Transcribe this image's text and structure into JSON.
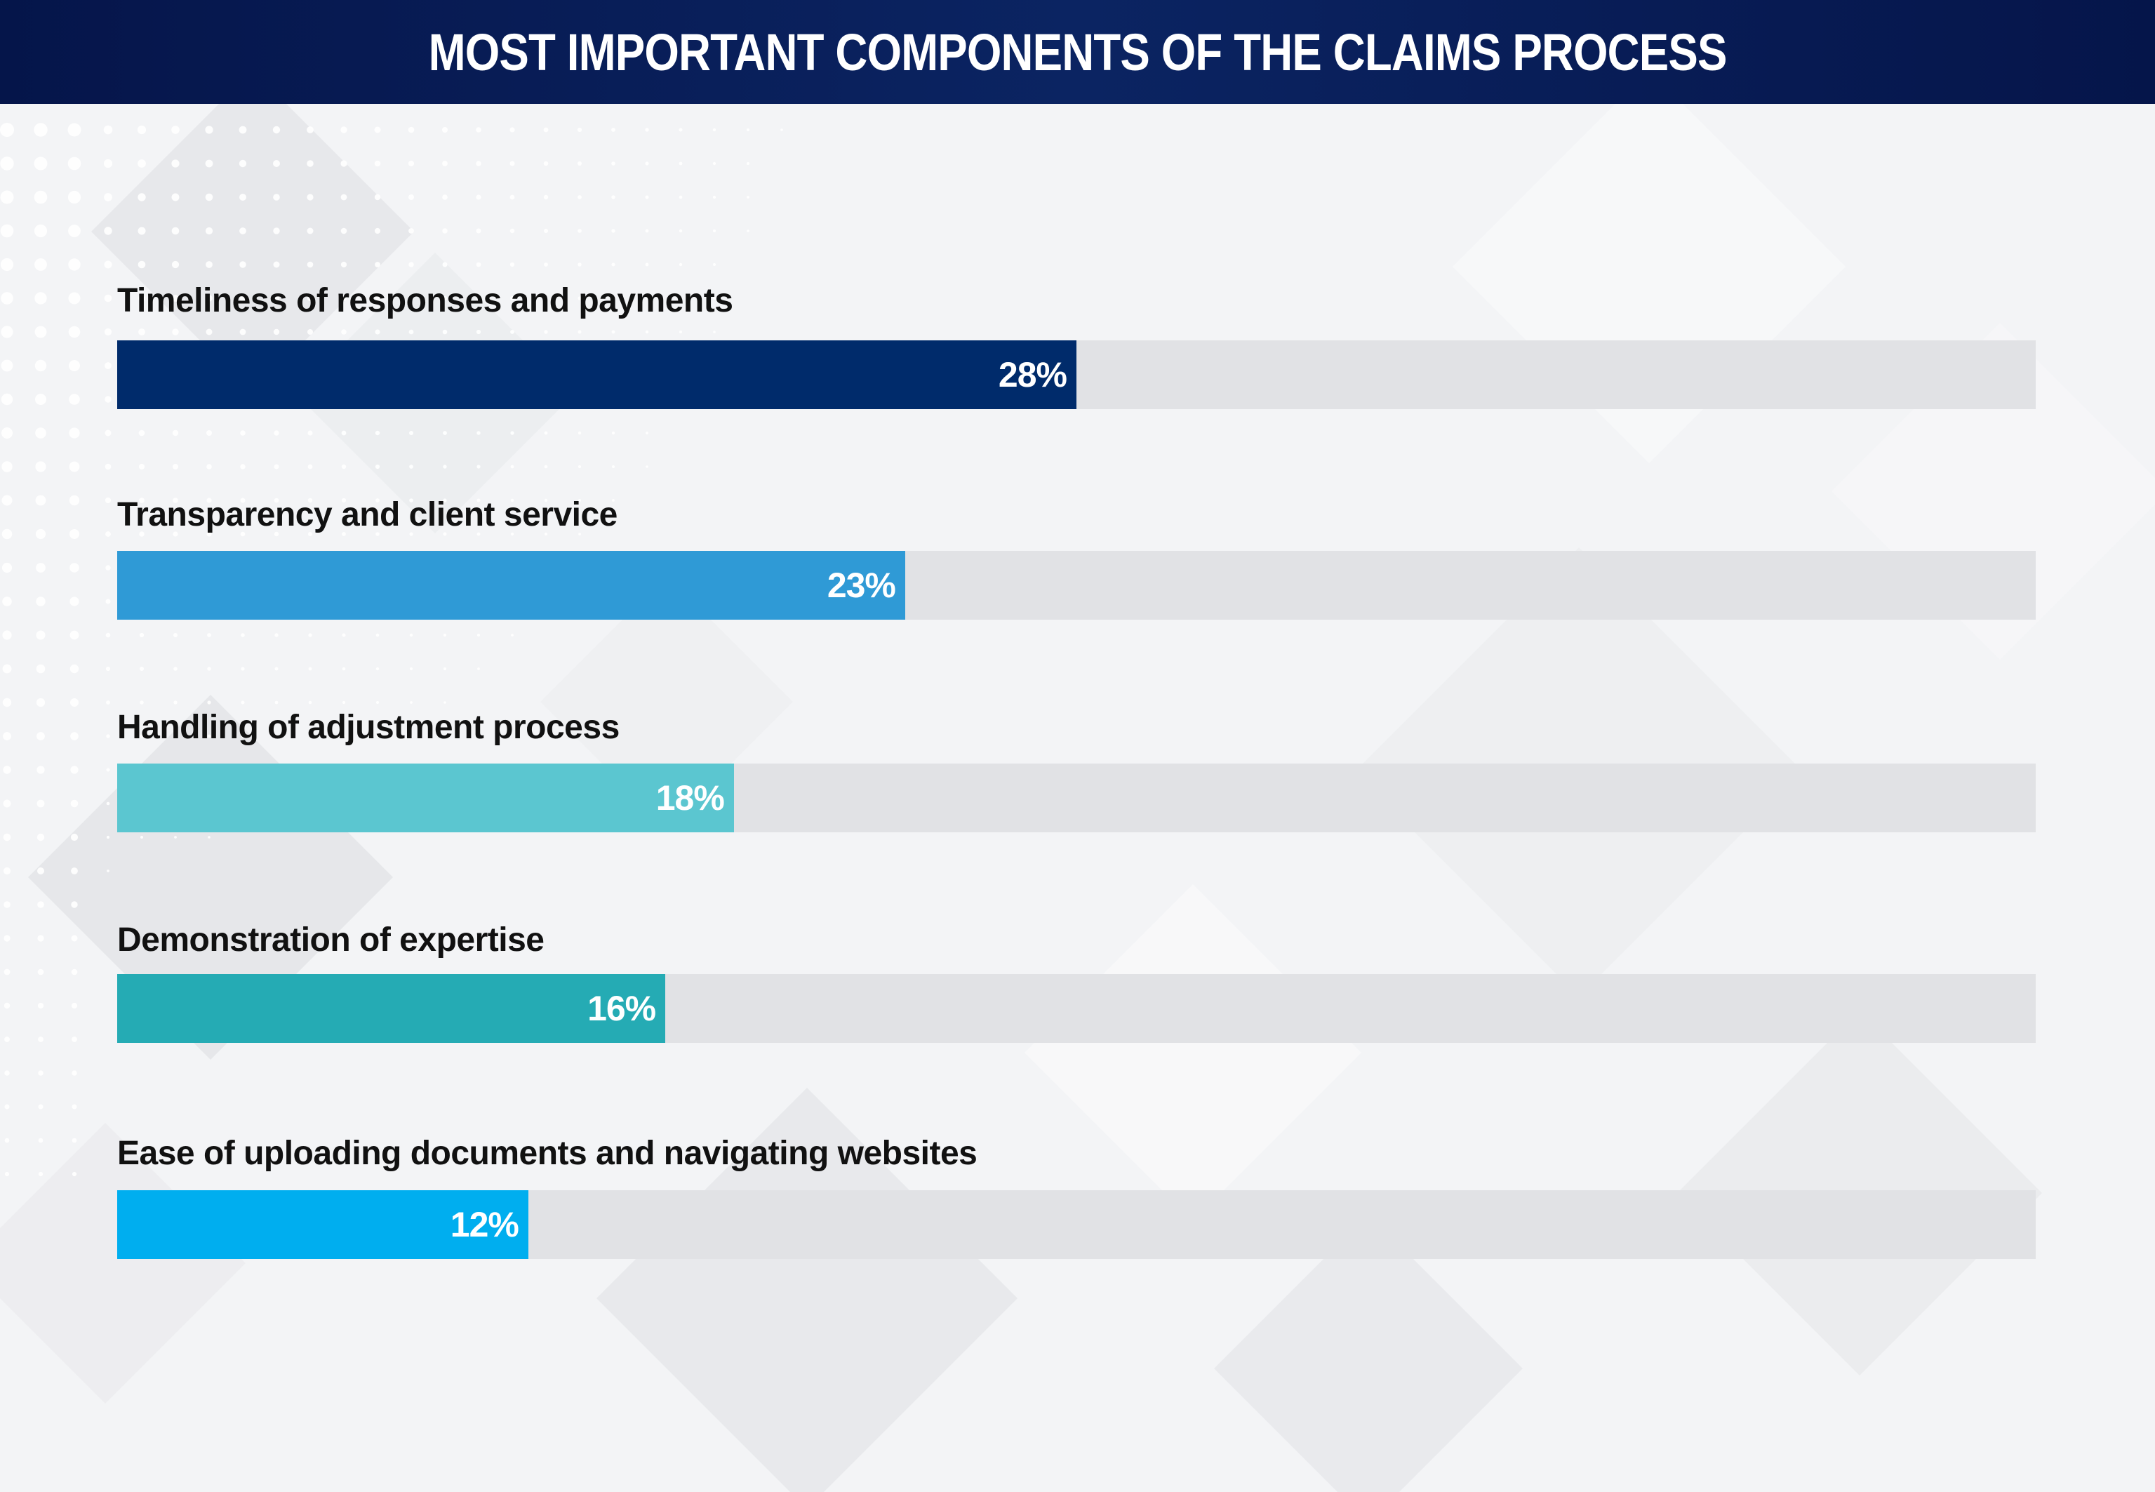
{
  "chart_data": {
    "type": "bar",
    "orientation": "horizontal",
    "title": "MOST IMPORTANT COMPONENTS OF THE CLAIMS PROCESS",
    "categories": [
      "Timeliness of responses and payments",
      "Transparency and client service",
      "Handling of adjustment process",
      "Demonstration of expertise",
      "Ease of uploading documents and navigating websites"
    ],
    "values": [
      28,
      23,
      18,
      16,
      12
    ],
    "value_labels": [
      "28%",
      "23%",
      "18%",
      "16%",
      "12%"
    ],
    "colors": [
      "#002b6b",
      "#2f9ad6",
      "#5bc6d0",
      "#25abb4",
      "#00aeef"
    ],
    "track_color": "#e1e2e5",
    "xlim": [
      0,
      56
    ],
    "grid": false,
    "legend": "none"
  }
}
